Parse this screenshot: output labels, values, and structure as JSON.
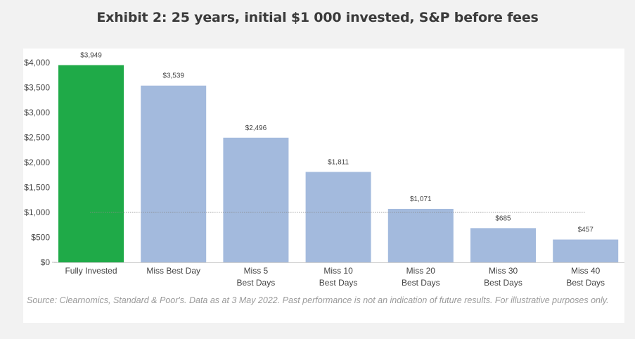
{
  "chart_data": {
    "type": "bar",
    "title": "Exhibit 2: 25 years, initial $1 000 invested, S&P before fees",
    "xlabel": "",
    "ylabel": "",
    "ylim": [
      0,
      4000
    ],
    "yticks": [
      0,
      500,
      1000,
      1500,
      2000,
      2500,
      3000,
      3500,
      4000
    ],
    "ytick_labels": [
      "$0",
      "$500",
      "$1,000",
      "$1,500",
      "$2,000",
      "$2,500",
      "$3,000",
      "$3,500",
      "$4,000"
    ],
    "grid": false,
    "categories": [
      [
        "Fully Invested"
      ],
      [
        "Miss Best Day"
      ],
      [
        "Miss 5",
        "Best Days"
      ],
      [
        "Miss 10",
        "Best Days"
      ],
      [
        "Miss 20",
        "Best Days"
      ],
      [
        "Miss 30",
        "Best Days"
      ],
      [
        "Miss 40",
        "Best Days"
      ]
    ],
    "values": [
      3949,
      3539,
      2496,
      1811,
      1071,
      685,
      457
    ],
    "value_labels": [
      "$3,949",
      "$3,539",
      "$2,496",
      "$1,811",
      "$1,071",
      "$685",
      "$457"
    ],
    "bar_colors": [
      "#1faa48",
      "#a3badd",
      "#a3badd",
      "#a3badd",
      "#a3badd",
      "#a3badd",
      "#a3badd"
    ],
    "reference_line": {
      "value": 1000,
      "style": "dotted",
      "label": ""
    },
    "source": "Source: Clearnomics, Standard & Poor's. Data as at 3 May 2022. Past performance is not an indication of future results. For illustrative purposes only."
  }
}
